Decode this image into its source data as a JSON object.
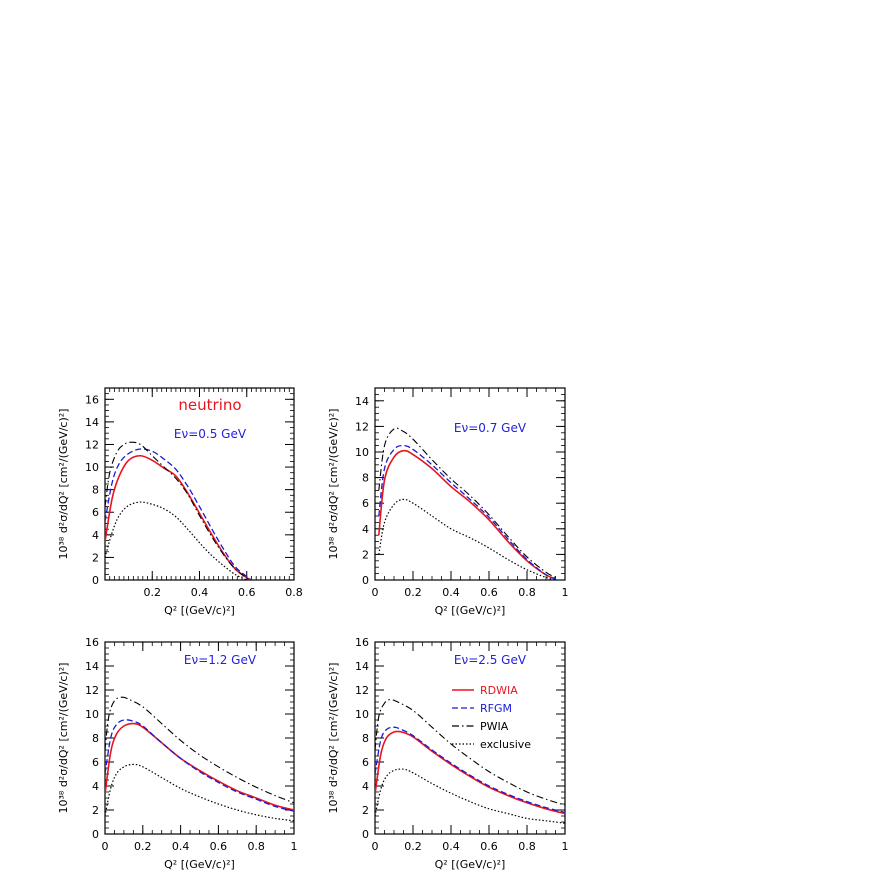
{
  "colors": {
    "rdwia": "#e8141e",
    "rfgm": "#1a1ad6",
    "pwia": "#000000",
    "exclusive": "#000000",
    "annotation_blue": "#2222dd",
    "annotation_red": "#e8141e"
  },
  "legend": {
    "items": [
      {
        "label": "RDWIA",
        "style": "solid",
        "color": "#e8141e"
      },
      {
        "label": "RFGM",
        "style": "dashed",
        "color": "#1a1ad6"
      },
      {
        "label": "PWIA",
        "style": "dashdot",
        "color": "#000000"
      },
      {
        "label": "exclusive",
        "style": "dotted",
        "color": "#000000"
      }
    ]
  },
  "chart_data": [
    {
      "type": "line",
      "panel": "top-left",
      "annotations": [
        "neutrino",
        "Eν=0.5 GeV"
      ],
      "xlabel": "Q² [(GeV/c)²]",
      "ylabel": "10³⁸ d²σ/dQ² [cm²/(GeV/c)²]",
      "xlim": [
        0,
        0.8
      ],
      "ylim": [
        0,
        17
      ],
      "xticks": [
        0.2,
        0.4,
        0.6,
        0.8
      ],
      "xtick_labels": [
        "0.2",
        "0.4",
        "0.6",
        "0.8"
      ],
      "yticks": [
        0,
        2,
        4,
        6,
        8,
        10,
        12,
        14,
        16
      ],
      "ytick_labels": [
        "0",
        "2",
        "4",
        "6",
        "8",
        "10",
        "12",
        "14",
        "16"
      ],
      "series": [
        {
          "name": "RDWIA",
          "x": [
            0.0,
            0.03,
            0.06,
            0.1,
            0.15,
            0.2,
            0.25,
            0.3,
            0.35,
            0.4,
            0.45,
            0.5,
            0.55,
            0.6,
            0.62
          ],
          "y": [
            3.4,
            7.2,
            9.2,
            10.6,
            11.0,
            10.6,
            9.9,
            9.2,
            7.7,
            5.9,
            4.1,
            2.4,
            1.0,
            0.2,
            0.0
          ]
        },
        {
          "name": "RFGM",
          "x": [
            0.0,
            0.03,
            0.06,
            0.1,
            0.15,
            0.2,
            0.25,
            0.3,
            0.35,
            0.4,
            0.45,
            0.5,
            0.55,
            0.6,
            0.62
          ],
          "y": [
            5.2,
            8.6,
            10.3,
            11.2,
            11.6,
            11.4,
            10.7,
            9.8,
            8.3,
            6.5,
            4.6,
            2.8,
            1.2,
            0.3,
            0.0
          ]
        },
        {
          "name": "PWIA",
          "x": [
            0.0,
            0.02,
            0.05,
            0.08,
            0.11,
            0.15,
            0.2,
            0.25,
            0.3,
            0.35,
            0.4,
            0.45,
            0.5,
            0.55,
            0.6,
            0.62
          ],
          "y": [
            6.5,
            9.5,
            11.3,
            12.0,
            12.2,
            12.0,
            11.0,
            10.0,
            9.0,
            7.6,
            5.7,
            3.9,
            2.3,
            1.0,
            0.2,
            0.0
          ]
        },
        {
          "name": "exclusive",
          "x": [
            0.0,
            0.03,
            0.06,
            0.1,
            0.15,
            0.2,
            0.25,
            0.3,
            0.35,
            0.4,
            0.45,
            0.5,
            0.55,
            0.6
          ],
          "y": [
            2.0,
            4.2,
            5.7,
            6.6,
            6.9,
            6.7,
            6.3,
            5.6,
            4.5,
            3.3,
            2.2,
            1.3,
            0.5,
            0.0
          ]
        }
      ]
    },
    {
      "type": "line",
      "panel": "top-right",
      "annotations": [
        "Eν=0.7 GeV"
      ],
      "xlabel": "Q² [(GeV/c)²]",
      "ylabel": "10³⁸ d²σ/dQ² [cm²/(GeV/c)²]",
      "xlim": [
        0,
        1
      ],
      "ylim": [
        0,
        15
      ],
      "xticks": [
        0,
        0.2,
        0.4,
        0.6,
        0.8,
        1
      ],
      "xtick_labels": [
        "0",
        "0.2",
        "0.4",
        "0.6",
        "0.8",
        "1"
      ],
      "yticks": [
        0,
        2,
        4,
        6,
        8,
        10,
        12,
        14
      ],
      "ytick_labels": [
        "0",
        "2",
        "4",
        "6",
        "8",
        "10",
        "12",
        "14"
      ],
      "series": [
        {
          "name": "RDWIA",
          "x": [
            0.02,
            0.05,
            0.1,
            0.15,
            0.2,
            0.3,
            0.4,
            0.5,
            0.6,
            0.7,
            0.8,
            0.9,
            0.95
          ],
          "y": [
            3.5,
            7.8,
            9.6,
            10.1,
            9.8,
            8.7,
            7.3,
            6.1,
            4.7,
            3.0,
            1.5,
            0.4,
            0.1
          ]
        },
        {
          "name": "RFGM",
          "x": [
            0.02,
            0.05,
            0.1,
            0.15,
            0.2,
            0.3,
            0.4,
            0.5,
            0.6,
            0.7,
            0.8,
            0.9,
            0.95
          ],
          "y": [
            5.0,
            8.7,
            10.2,
            10.5,
            10.2,
            9.0,
            7.6,
            6.3,
            4.9,
            3.2,
            1.6,
            0.4,
            0.1
          ]
        },
        {
          "name": "PWIA",
          "x": [
            0.02,
            0.05,
            0.1,
            0.15,
            0.2,
            0.3,
            0.4,
            0.5,
            0.6,
            0.7,
            0.8,
            0.9,
            0.95
          ],
          "y": [
            7.0,
            10.5,
            11.8,
            11.6,
            11.0,
            9.4,
            7.9,
            6.6,
            5.1,
            3.4,
            1.8,
            0.6,
            0.2
          ]
        },
        {
          "name": "exclusive",
          "x": [
            0.02,
            0.05,
            0.1,
            0.15,
            0.2,
            0.3,
            0.4,
            0.5,
            0.6,
            0.7,
            0.8,
            0.9,
            0.95
          ],
          "y": [
            2.0,
            4.5,
            5.9,
            6.3,
            6.0,
            5.0,
            4.0,
            3.3,
            2.5,
            1.6,
            0.8,
            0.2,
            0.0
          ]
        }
      ]
    },
    {
      "type": "line",
      "panel": "bottom-left",
      "annotations": [
        "Eν=1.2 GeV"
      ],
      "xlabel": "Q² [(GeV/c)²]",
      "ylabel": "10³⁸ d²σ/dQ² [cm²/(GeV/c)²]",
      "xlim": [
        0,
        1
      ],
      "ylim": [
        0,
        16
      ],
      "xticks": [
        0,
        0.2,
        0.4,
        0.6,
        0.8,
        1
      ],
      "xtick_labels": [
        "0",
        "0.2",
        "0.4",
        "0.6",
        "0.8",
        "1"
      ],
      "yticks": [
        0,
        2,
        4,
        6,
        8,
        10,
        12,
        14,
        16
      ],
      "ytick_labels": [
        "0",
        "2",
        "4",
        "6",
        "8",
        "10",
        "12",
        "14",
        "16"
      ],
      "series": [
        {
          "name": "RDWIA",
          "x": [
            0.0,
            0.03,
            0.06,
            0.1,
            0.15,
            0.2,
            0.3,
            0.4,
            0.5,
            0.6,
            0.7,
            0.8,
            0.9,
            1.0
          ],
          "y": [
            3.3,
            6.8,
            8.3,
            9.0,
            9.2,
            8.9,
            7.6,
            6.3,
            5.3,
            4.4,
            3.6,
            3.0,
            2.4,
            2.0
          ]
        },
        {
          "name": "RFGM",
          "x": [
            0.0,
            0.03,
            0.06,
            0.1,
            0.15,
            0.2,
            0.3,
            0.4,
            0.5,
            0.6,
            0.7,
            0.8,
            0.9,
            1.0
          ],
          "y": [
            5.0,
            8.0,
            9.1,
            9.5,
            9.4,
            9.0,
            7.6,
            6.3,
            5.2,
            4.3,
            3.5,
            2.9,
            2.3,
            1.9
          ]
        },
        {
          "name": "PWIA",
          "x": [
            0.0,
            0.02,
            0.05,
            0.09,
            0.13,
            0.2,
            0.3,
            0.4,
            0.5,
            0.6,
            0.7,
            0.8,
            0.9,
            1.0
          ],
          "y": [
            7.0,
            9.8,
            11.1,
            11.4,
            11.2,
            10.6,
            9.2,
            7.8,
            6.6,
            5.6,
            4.7,
            3.9,
            3.2,
            2.6
          ]
        },
        {
          "name": "exclusive",
          "x": [
            0.0,
            0.03,
            0.06,
            0.1,
            0.15,
            0.2,
            0.3,
            0.4,
            0.5,
            0.6,
            0.7,
            0.8,
            0.9,
            1.0
          ],
          "y": [
            1.5,
            3.8,
            5.0,
            5.6,
            5.8,
            5.6,
            4.7,
            3.8,
            3.1,
            2.5,
            2.0,
            1.6,
            1.3,
            1.1
          ]
        }
      ]
    },
    {
      "type": "line",
      "panel": "bottom-right",
      "annotations": [
        "Eν=2.5 GeV"
      ],
      "xlabel": "Q² [(GeV/c)²]",
      "ylabel": "10³⁸ d²σ/dQ² [cm²/(GeV/c)²]",
      "xlim": [
        0,
        1
      ],
      "ylim": [
        0,
        16
      ],
      "xticks": [
        0,
        0.2,
        0.4,
        0.6,
        0.8,
        1
      ],
      "xtick_labels": [
        "0",
        "0.2",
        "0.4",
        "0.6",
        "0.8",
        "1"
      ],
      "yticks": [
        0,
        2,
        4,
        6,
        8,
        10,
        12,
        14,
        16
      ],
      "ytick_labels": [
        "0",
        "2",
        "4",
        "6",
        "8",
        "10",
        "12",
        "14",
        "16"
      ],
      "legend": "inside-upper-right",
      "series": [
        {
          "name": "RDWIA",
          "x": [
            0.0,
            0.03,
            0.06,
            0.1,
            0.14,
            0.2,
            0.3,
            0.4,
            0.5,
            0.6,
            0.7,
            0.8,
            0.9,
            1.0
          ],
          "y": [
            3.3,
            6.6,
            8.0,
            8.5,
            8.5,
            8.1,
            6.9,
            5.8,
            4.8,
            3.9,
            3.2,
            2.6,
            2.1,
            1.7
          ]
        },
        {
          "name": "RFGM",
          "x": [
            0.0,
            0.03,
            0.06,
            0.1,
            0.14,
            0.2,
            0.3,
            0.4,
            0.5,
            0.6,
            0.7,
            0.8,
            0.9,
            1.0
          ],
          "y": [
            5.0,
            7.8,
            8.7,
            8.9,
            8.7,
            8.2,
            7.0,
            5.9,
            4.9,
            4.0,
            3.3,
            2.7,
            2.2,
            1.8
          ]
        },
        {
          "name": "PWIA",
          "x": [
            0.0,
            0.02,
            0.05,
            0.08,
            0.12,
            0.2,
            0.3,
            0.4,
            0.5,
            0.6,
            0.7,
            0.8,
            0.9,
            1.0
          ],
          "y": [
            7.0,
            9.8,
            10.9,
            11.2,
            11.0,
            10.3,
            8.9,
            7.5,
            6.3,
            5.2,
            4.3,
            3.5,
            2.9,
            2.4
          ]
        },
        {
          "name": "exclusive",
          "x": [
            0.0,
            0.03,
            0.06,
            0.1,
            0.15,
            0.2,
            0.3,
            0.4,
            0.5,
            0.6,
            0.7,
            0.8,
            0.9,
            1.0
          ],
          "y": [
            1.5,
            3.7,
            4.8,
            5.3,
            5.4,
            5.1,
            4.2,
            3.4,
            2.7,
            2.1,
            1.7,
            1.3,
            1.1,
            0.9
          ]
        }
      ]
    }
  ]
}
